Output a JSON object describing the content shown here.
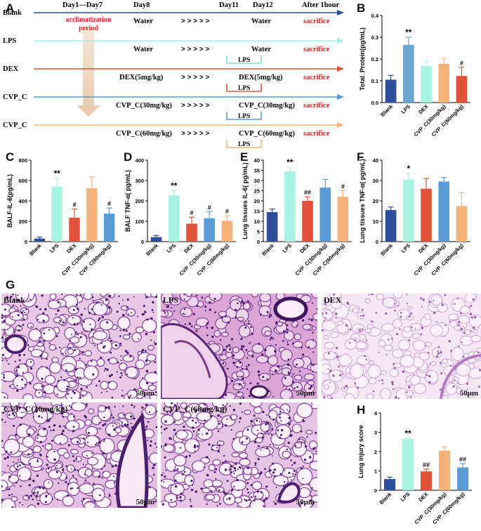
{
  "panels": {
    "A": "A",
    "B": "B",
    "C": "C",
    "D": "D",
    "E": "E",
    "F": "F",
    "G": "G",
    "H": "H"
  },
  "schedule": {
    "header": {
      "day1_7": "Day1—Day7",
      "day8": "Day8",
      "day11": "Day11",
      "day12": "Day12",
      "after": "After 1hour"
    },
    "acclimatization": [
      "acclimatization",
      "period"
    ],
    "rows": [
      {
        "group": "Blank",
        "color": "#2e4d9b",
        "treatment": "Water",
        "day12": "Water",
        "sacrifice": "sacrifice",
        "lps": ""
      },
      {
        "group": "LPS",
        "color": "#9ff0e0",
        "treatment": "Water",
        "day12": "Water",
        "sacrifice": "sacrifice",
        "lps": "LPS",
        "lps_color": "#7fe0cc"
      },
      {
        "group": "DEX",
        "color": "#e0533a",
        "treatment": "DEX(5mg/kg)",
        "day12": "DEX(5mg/kg)",
        "sacrifice": "sacrifice",
        "lps": "LPS",
        "lps_color": "#e0533a"
      },
      {
        "group": "CVP_C",
        "color": "#5b9bd5",
        "treatment": "CVP_C(30mg/kg)",
        "day12": "CVP_C(30mg/kg)",
        "sacrifice": "sacrifice",
        "lps": "LPS",
        "lps_color": "#5b9bd5"
      },
      {
        "group": "CVP_C",
        "color": "#f5b27a",
        "treatment": "CVP_C(60mg/kg)",
        "day12": "CVP_C(60mg/kg)",
        "sacrifice": "sacrifice",
        "lps": "LPS",
        "lps_color": "#f5b27a"
      }
    ],
    "arrows": "> > > > >"
  },
  "colors": {
    "Blank": "#2e4d9b",
    "LPS": "#a8f3e3",
    "DEX": "#e0533a",
    "CVP30": "#f5b27a",
    "CVP60": "#5b9bd5",
    "sacrifice": "#e02020"
  },
  "chart_data": [
    {
      "id": "B",
      "type": "bar",
      "ylabel": "Total_Protein(pg/mL)",
      "ylim": [
        0,
        0.4
      ],
      "yticks": [
        "0.0",
        "0.1",
        "0.2",
        "0.3",
        "0.4"
      ],
      "categories": [
        "Blank",
        "LPS",
        "DEX",
        "CVP_C(30mg/kg)",
        "CVP_C(60mg/kg)"
      ],
      "values": [
        0.105,
        0.265,
        0.168,
        0.178,
        0.122
      ],
      "errors": [
        0.02,
        0.035,
        0.02,
        0.025,
        0.04
      ],
      "bar_colors": [
        "#2e4d9b",
        "#6aa6cf",
        "#a8f3e3",
        "#f5b27a",
        "#e0533a"
      ],
      "annotations": [
        "",
        "**",
        "",
        "",
        "#"
      ]
    },
    {
      "id": "C",
      "type": "bar",
      "ylabel": "BALF-IL-6(pg/mL)",
      "ylim": [
        0,
        800
      ],
      "yticks": [
        "0",
        "200",
        "400",
        "600",
        "800"
      ],
      "categories": [
        "Blank",
        "LPS",
        "DEX",
        "CVP_C(30mg/kg)",
        "CVP_C(60mg/kg)"
      ],
      "values": [
        30,
        540,
        235,
        525,
        275
      ],
      "errors": [
        15,
        80,
        85,
        110,
        55
      ],
      "bar_colors": [
        "#2e4d9b",
        "#a8f3e3",
        "#e0533a",
        "#f5b27a",
        "#5b9bd5"
      ],
      "annotations": [
        "",
        "**",
        "#",
        "",
        "#"
      ]
    },
    {
      "id": "D",
      "type": "bar",
      "ylabel": "BALF TNF-α( pg/mL)",
      "ylim": [
        0,
        400
      ],
      "yticks": [
        "0",
        "100",
        "200",
        "300",
        "400"
      ],
      "categories": [
        "Blank",
        "LPS",
        "DEX",
        "CVP_C(30mg/kg)",
        "CVP_C(60mg/kg)"
      ],
      "values": [
        22,
        228,
        88,
        115,
        102
      ],
      "errors": [
        8,
        22,
        32,
        32,
        25
      ],
      "bar_colors": [
        "#2e4d9b",
        "#a8f3e3",
        "#e0533a",
        "#5b9bd5",
        "#f5b27a"
      ],
      "annotations": [
        "",
        "**",
        "#",
        "#",
        "#"
      ]
    },
    {
      "id": "E",
      "type": "bar",
      "ylabel": "Lung tissues IL-6( pg/mL)",
      "ylim": [
        0,
        40
      ],
      "yticks": [
        "0",
        "5",
        "10",
        "15",
        "20",
        "25",
        "30",
        "35",
        "40"
      ],
      "categories": [
        "Blank",
        "LPS",
        "DEX",
        "CVP_C(30mg/kg)",
        "CVP_C(60mg/kg)"
      ],
      "values": [
        14.5,
        34.5,
        20,
        26.5,
        22
      ],
      "errors": [
        1.5,
        2,
        2,
        4,
        3
      ],
      "bar_colors": [
        "#2e4d9b",
        "#a8f3e3",
        "#e0533a",
        "#5b9bd5",
        "#f5b27a"
      ],
      "annotations": [
        "",
        "**",
        "##",
        "",
        "#"
      ]
    },
    {
      "id": "F",
      "type": "bar",
      "ylabel": "Lung tissues TNF-α( pg/mL)",
      "ylim": [
        0,
        40
      ],
      "yticks": [
        "0",
        "10",
        "20",
        "30",
        "40"
      ],
      "categories": [
        "Blank",
        "LPS",
        "DEX",
        "CVP_C(30mg/kg)",
        "CVP_C(60mg/kg)"
      ],
      "values": [
        15.5,
        30.5,
        26,
        29.5,
        17.5
      ],
      "errors": [
        1.5,
        3,
        5,
        2,
        6.5
      ],
      "bar_colors": [
        "#2e4d9b",
        "#a8f3e3",
        "#e0533a",
        "#5b9bd5",
        "#f5b27a"
      ],
      "annotations": [
        "",
        "*",
        "",
        "",
        ""
      ]
    },
    {
      "id": "H",
      "type": "bar",
      "ylabel": "Lung injury score",
      "ylim": [
        0,
        4
      ],
      "yticks": [
        "0",
        "1",
        "2",
        "3",
        "4"
      ],
      "categories": [
        "Blank",
        "LPS",
        "DEX",
        "CVP_C(30mg/kg)",
        "CVP_C(60mg/kg)"
      ],
      "values": [
        0.58,
        2.65,
        0.98,
        2.05,
        1.18
      ],
      "errors": [
        0.1,
        0.05,
        0.12,
        0.2,
        0.2
      ],
      "bar_colors": [
        "#2e4d9b",
        "#a8f3e3",
        "#e0533a",
        "#f5b27a",
        "#5b9bd5"
      ],
      "annotations": [
        "",
        "**",
        "##",
        "",
        "##"
      ]
    }
  ],
  "histology": [
    {
      "label": "Blank",
      "scale": "50μm"
    },
    {
      "label": "LPS",
      "scale": "50μm"
    },
    {
      "label": "DEX",
      "scale": "50μm"
    },
    {
      "label": "CVP_C(30mg/kg)",
      "scale": "50μm"
    },
    {
      "label": "CVP_C(60mg/kg)",
      "scale": "50μm"
    }
  ]
}
